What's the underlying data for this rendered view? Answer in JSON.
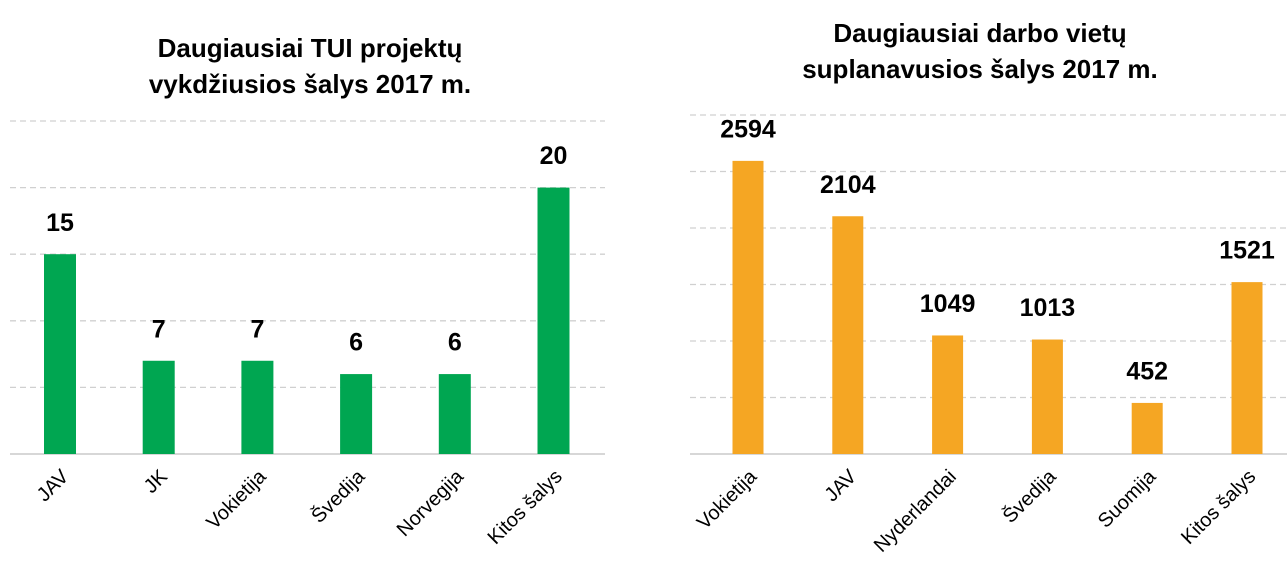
{
  "chart_data": [
    {
      "type": "bar",
      "title": "Daugiausiai TUI projektų vykdžiusios šalys 2017 m.",
      "categories": [
        "JAV",
        "JK",
        "Vokietija",
        "Švedija",
        "Norvegija",
        "Kitos šalys"
      ],
      "values": [
        15,
        7,
        7,
        6,
        6,
        20
      ],
      "color": "#00a651",
      "ylim": [
        0,
        25
      ],
      "yticks": [
        0,
        5,
        10,
        15,
        20,
        25
      ],
      "grid": true
    },
    {
      "type": "bar",
      "title": "Daugiausiai darbo vietų suplanavusios šalys 2017 m.",
      "categories": [
        "Vokietija",
        "JAV",
        "Nyderlandai",
        "Švedija",
        "Suomija",
        "Kitos šalys"
      ],
      "values": [
        2594,
        2104,
        1049,
        1013,
        452,
        1521
      ],
      "color": "#f5a623",
      "ylim": [
        0,
        3000
      ],
      "yticks": [
        0,
        500,
        1000,
        1500,
        2000,
        2500,
        3000
      ],
      "grid": true
    }
  ]
}
